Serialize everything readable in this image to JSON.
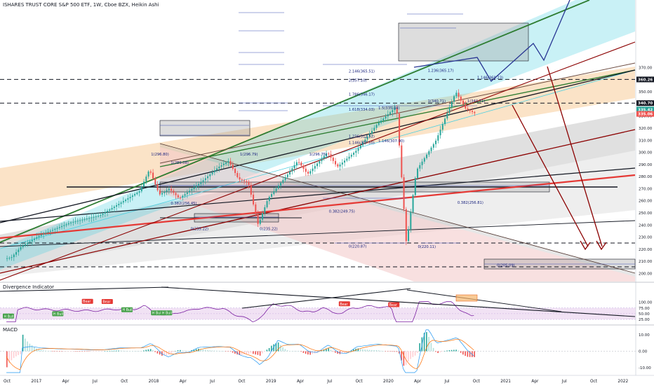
{
  "header": {
    "symbol_line": "ISHARES TRUST CORE S&P 500 ETF, 1W, Cboe BZX, Heikin Ashi"
  },
  "colors": {
    "up": "#26a69a",
    "down": "#ef5350",
    "channel_green": "#2e7d32",
    "channel_blue": "#4dd0e1",
    "channel_orange": "#f5b56b",
    "channel_gray": "#9e9e9e",
    "channel_red_fill": "#f3c6c6",
    "red_line": "#e53935",
    "dark_red": "#8b0000",
    "fib_blue": "#3f51b5",
    "nav_blue": "#1a237e"
  },
  "chart_data": [
    {
      "type": "candlestick",
      "panel": "price",
      "title": "ISHARES TRUST CORE S&P 500 ETF, 1W, Cboe BZX, Heikin Ashi",
      "x_range": [
        "2016-10",
        "2022-01"
      ],
      "y_ticks": [
        200.0,
        210.0,
        220.0,
        230.0,
        240.0,
        250.0,
        260.0,
        270.0,
        280.0,
        290.0,
        300.0,
        310.0,
        320.0,
        330.0,
        340.0,
        350.0,
        360.0,
        370.0
      ],
      "ylim": [
        197,
        374
      ],
      "price_path": [
        [
          "2016-10",
          212
        ],
        [
          "2016-11",
          213
        ],
        [
          "2016-12",
          222
        ],
        [
          "2017-02",
          232
        ],
        [
          "2017-05",
          242
        ],
        [
          "2017-08",
          248
        ],
        [
          "2017-10",
          258
        ],
        [
          "2017-12",
          268
        ],
        [
          "2018-01",
          286
        ],
        [
          "2018-02",
          265
        ],
        [
          "2018-03",
          270
        ],
        [
          "2018-04",
          262
        ],
        [
          "2018-06",
          274
        ],
        [
          "2018-08",
          288
        ],
        [
          "2018-09",
          293
        ],
        [
          "2018-10",
          278
        ],
        [
          "2018-11",
          275
        ],
        [
          "2018-12",
          240
        ],
        [
          "2019-01",
          262
        ],
        [
          "2019-03",
          282
        ],
        [
          "2019-04",
          293
        ],
        [
          "2019-05",
          282
        ],
        [
          "2019-07",
          300
        ],
        [
          "2019-08",
          288
        ],
        [
          "2019-10",
          302
        ],
        [
          "2019-12",
          323
        ],
        [
          "2020-02",
          338
        ],
        [
          "2020-03",
          224
        ],
        [
          "2020-04",
          285
        ],
        [
          "2020-06",
          310
        ],
        [
          "2020-08",
          350
        ],
        [
          "2020-09",
          336
        ],
        [
          "2020-10",
          332
        ]
      ],
      "price_labels": [
        {
          "value": "360.26",
          "price": 360.26,
          "color": "#131722"
        },
        {
          "value": "340.70",
          "price": 340.7,
          "color": "#131722"
        },
        {
          "value": "335.42",
          "price": 335.42,
          "color": "#26a69a"
        },
        {
          "value": "335.06",
          "price": 331.8,
          "color": "#ef5350"
        }
      ],
      "fib_labels": [
        {
          "text": "2.146(365.51)",
          "date": "2019-09",
          "price": 365.5
        },
        {
          "text": "1.236(365.17)",
          "date": "2020-05",
          "price": 366
        },
        {
          "text": "2(357.10)",
          "date": "2019-09",
          "price": 358
        },
        {
          "text": "1.146(360.23)",
          "date": "2020-10",
          "price": 360.3
        },
        {
          "text": "1.786(346.17)",
          "date": "2019-09",
          "price": 346.2
        },
        {
          "text": "1(340.71)",
          "date": "2020-05",
          "price": 340.9
        },
        {
          "text": "1(340.71)",
          "date": "2020-09",
          "price": 340.9
        },
        {
          "text": "1.618(334.03)",
          "date": "2019-09",
          "price": 334
        },
        {
          "text": "1.5(335.04)",
          "date": "2019-12",
          "price": 335
        },
        {
          "text": "1.236(312.52)",
          "date": "2019-09",
          "price": 311.7
        },
        {
          "text": "1.146(307.90)",
          "date": "2019-12",
          "price": 307.9
        },
        {
          "text": "1.146(307.50)",
          "date": "2019-09",
          "price": 306.5
        },
        {
          "text": "1(296.80)",
          "date": "2018-01",
          "price": 296.8
        },
        {
          "text": "1(296.79)",
          "date": "2018-10",
          "price": 296.8
        },
        {
          "text": "1(296.75)",
          "date": "2019-05",
          "price": 296.8
        },
        {
          "text": "1(289.08)",
          "date": "2018-03",
          "price": 290
        },
        {
          "text": "0.382(256.45)",
          "date": "2018-03",
          "price": 256.5
        },
        {
          "text": "0.382(256.81)",
          "date": "2020-08",
          "price": 256.9
        },
        {
          "text": "0.382(249.75)",
          "date": "2019-07",
          "price": 249.7
        },
        {
          "text": "0(235.22)",
          "date": "2018-05",
          "price": 235.2
        },
        {
          "text": "0(235.22)",
          "date": "2018-12",
          "price": 235.2
        },
        {
          "text": "0(220.87)",
          "date": "2019-09",
          "price": 220.8
        },
        {
          "text": "0(220.11)",
          "date": "2020-04",
          "price": 220.5
        },
        {
          "text": "0(205.09)",
          "date": "2020-12",
          "price": 205.1
        }
      ]
    },
    {
      "type": "line",
      "panel": "indicator",
      "title": "Divergence Indicator",
      "y_ticks": [
        100.0,
        75.0,
        50.0,
        25.0
      ],
      "ylim": [
        10,
        112
      ],
      "badges": [
        {
          "text": "H Bull",
          "kind": "bull",
          "date": "2016-10",
          "value": 38
        },
        {
          "text": "H Bull",
          "kind": "bull",
          "date": "2017-03",
          "value": 48
        },
        {
          "text": "H Bull",
          "kind": "bull",
          "date": "2017-10",
          "value": 66
        },
        {
          "text": "Bear",
          "kind": "bear",
          "date": "2017-06",
          "value": 103
        },
        {
          "text": "Bear",
          "kind": "bear",
          "date": "2017-08",
          "value": 102
        },
        {
          "text": "H Bull",
          "kind": "bull",
          "date": "2018-01",
          "value": 52
        },
        {
          "text": "H Bull",
          "kind": "bull",
          "date": "2018-02",
          "value": 52
        },
        {
          "text": "Bear",
          "kind": "bear",
          "date": "2019-08",
          "value": 92
        },
        {
          "text": "Bear",
          "kind": "bear",
          "date": "2020-01",
          "value": 88
        }
      ]
    },
    {
      "type": "bar",
      "panel": "macd",
      "title": "MACD",
      "y_ticks": [
        10.0,
        0.0,
        -10.0
      ],
      "ylim": [
        -14,
        14
      ]
    }
  ],
  "x_axis": {
    "ticks": [
      "Oct",
      "2017",
      "Apr",
      "Jul",
      "Oct",
      "2018",
      "Apr",
      "Jul",
      "Oct",
      "2019",
      "Apr",
      "Jul",
      "Oct",
      "2020",
      "Apr",
      "Jul",
      "Oct",
      "2021",
      "Apr",
      "Jul",
      "Oct",
      "2022"
    ]
  }
}
